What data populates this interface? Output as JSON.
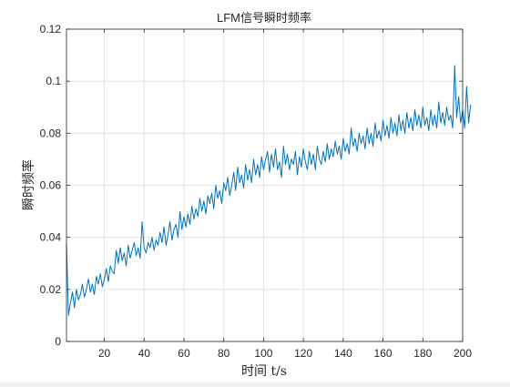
{
  "chart_data": {
    "type": "line",
    "title": "LFM信号瞬时频率",
    "xlabel": "时间 t/s",
    "ylabel": "瞬时频率",
    "xlim": [
      1,
      200
    ],
    "ylim": [
      0,
      0.12
    ],
    "xticks": [
      20,
      40,
      60,
      80,
      100,
      120,
      140,
      160,
      180,
      200
    ],
    "yticks": [
      0,
      0.02,
      0.04,
      0.06,
      0.08,
      0.1,
      0.12
    ],
    "grid": true,
    "line_color": "#0072bd",
    "series": [
      {
        "values": [
          0.038,
          0.01,
          0.015,
          0.019,
          0.013,
          0.02,
          0.016,
          0.018,
          0.022,
          0.017,
          0.02,
          0.024,
          0.019,
          0.022,
          0.018,
          0.025,
          0.022,
          0.026,
          0.021,
          0.024,
          0.028,
          0.023,
          0.029,
          0.027,
          0.026,
          0.035,
          0.03,
          0.036,
          0.031,
          0.034,
          0.029,
          0.037,
          0.032,
          0.035,
          0.038,
          0.033,
          0.036,
          0.032,
          0.046,
          0.036,
          0.034,
          0.038,
          0.036,
          0.04,
          0.035,
          0.039,
          0.037,
          0.042,
          0.038,
          0.044,
          0.037,
          0.041,
          0.046,
          0.039,
          0.043,
          0.045,
          0.04,
          0.05,
          0.043,
          0.048,
          0.044,
          0.049,
          0.045,
          0.052,
          0.047,
          0.051,
          0.048,
          0.055,
          0.05,
          0.054,
          0.049,
          0.056,
          0.053,
          0.057,
          0.051,
          0.06,
          0.055,
          0.058,
          0.053,
          0.061,
          0.058,
          0.063,
          0.056,
          0.06,
          0.065,
          0.058,
          0.067,
          0.061,
          0.064,
          0.059,
          0.068,
          0.062,
          0.066,
          0.061,
          0.07,
          0.064,
          0.068,
          0.063,
          0.071,
          0.066,
          0.07,
          0.073,
          0.065,
          0.072,
          0.067,
          0.074,
          0.066,
          0.069,
          0.063,
          0.075,
          0.068,
          0.072,
          0.066,
          0.07,
          0.068,
          0.073,
          0.064,
          0.071,
          0.067,
          0.074,
          0.069,
          0.066,
          0.073,
          0.068,
          0.072,
          0.066,
          0.075,
          0.07,
          0.068,
          0.073,
          0.069,
          0.076,
          0.07,
          0.074,
          0.071,
          0.077,
          0.072,
          0.075,
          0.07,
          0.078,
          0.073,
          0.076,
          0.072,
          0.082,
          0.075,
          0.078,
          0.073,
          0.08,
          0.076,
          0.079,
          0.074,
          0.082,
          0.076,
          0.08,
          0.075,
          0.084,
          0.078,
          0.081,
          0.077,
          0.085,
          0.079,
          0.083,
          0.078,
          0.086,
          0.08,
          0.084,
          0.079,
          0.087,
          0.081,
          0.085,
          0.08,
          0.088,
          0.082,
          0.086,
          0.081,
          0.089,
          0.083,
          0.087,
          0.082,
          0.09,
          0.083,
          0.086,
          0.081,
          0.089,
          0.083,
          0.087,
          0.082,
          0.092,
          0.084,
          0.088,
          0.083,
          0.09,
          0.085,
          0.087,
          0.082,
          0.106,
          0.086,
          0.094,
          0.084,
          0.089,
          0.082,
          0.098,
          0.084,
          0.091
        ]
      }
    ]
  }
}
